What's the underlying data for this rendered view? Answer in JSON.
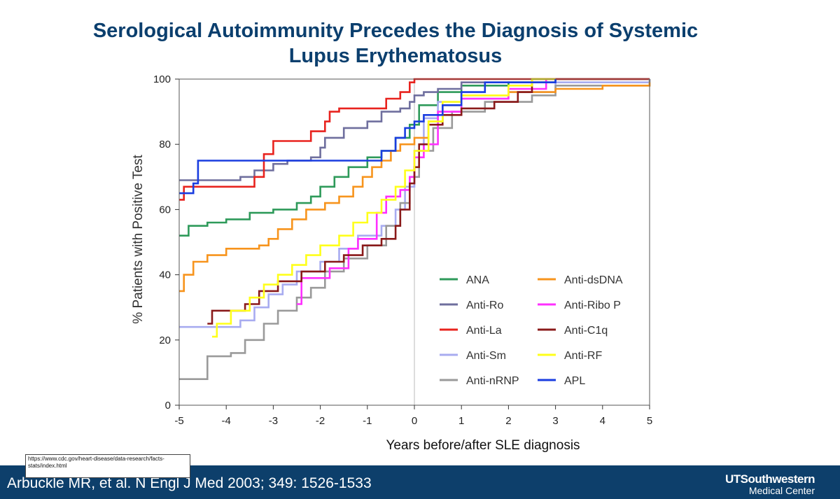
{
  "slide": {
    "title_line1": "Serological Autoimmunity Precedes the Diagnosis of Systemic",
    "title_line2": "Lupus Erythematosus",
    "source_url": "https://www.cdc.gov/heart-disease/data-research/facts-stats/index.html",
    "citation": "Arbuckle MR, et al. N Engl J Med 2003; 349: 1526-1533",
    "logo_main": "UTSouthwestern",
    "logo_sub": "Medical Center"
  },
  "chart_data": {
    "type": "line",
    "step": true,
    "title": "",
    "xlabel": "Years before/after SLE diagnosis",
    "ylabel": "% Patients with Positive Test",
    "xlim": [
      -5,
      5
    ],
    "ylim": [
      0,
      100
    ],
    "xticks": [
      -5,
      -4,
      -3,
      -2,
      -1,
      0,
      1,
      2,
      3,
      4,
      5
    ],
    "xtick_labels": [
      "-5",
      "-4",
      "-3",
      "-2",
      "-1",
      "0",
      "1",
      "2",
      "3",
      "4",
      "5"
    ],
    "yticks": [
      0,
      20,
      40,
      60,
      80,
      100
    ],
    "ytick_labels": [
      "0",
      "20",
      "40",
      "60",
      "80",
      "100"
    ],
    "reference_line_x": 0,
    "legend": {
      "position": "lower-right",
      "columns": 2
    },
    "series": [
      {
        "name": "ANA",
        "color": "#2e9a5a",
        "points": [
          [
            -5,
            52
          ],
          [
            -4.8,
            55
          ],
          [
            -4.4,
            56
          ],
          [
            -4,
            57
          ],
          [
            -3.5,
            59
          ],
          [
            -3,
            60
          ],
          [
            -2.5,
            62
          ],
          [
            -2.2,
            64
          ],
          [
            -2,
            67
          ],
          [
            -1.7,
            70
          ],
          [
            -1.4,
            73
          ],
          [
            -1,
            76
          ],
          [
            -0.7,
            78
          ],
          [
            -0.4,
            82
          ],
          [
            -0.1,
            86
          ],
          [
            0.1,
            92
          ],
          [
            0.5,
            96
          ],
          [
            1,
            98
          ],
          [
            2,
            99
          ],
          [
            3,
            100
          ],
          [
            5,
            100
          ]
        ]
      },
      {
        "name": "Anti-Ro",
        "color": "#6f6f9e",
        "points": [
          [
            -5,
            69
          ],
          [
            -4.3,
            69
          ],
          [
            -3.7,
            70
          ],
          [
            -3.4,
            72
          ],
          [
            -3,
            74
          ],
          [
            -2.7,
            75
          ],
          [
            -2.2,
            76
          ],
          [
            -2,
            79
          ],
          [
            -1.9,
            82
          ],
          [
            -1.5,
            85
          ],
          [
            -1,
            87
          ],
          [
            -0.7,
            90
          ],
          [
            -0.3,
            91
          ],
          [
            -0.1,
            93
          ],
          [
            0,
            95
          ],
          [
            0.2,
            96
          ],
          [
            0.5,
            97
          ],
          [
            1,
            99
          ],
          [
            3,
            100
          ],
          [
            5,
            100
          ]
        ]
      },
      {
        "name": "Anti-La",
        "color": "#e8231e",
        "points": [
          [
            -5,
            63
          ],
          [
            -4.9,
            67
          ],
          [
            -3.4,
            70
          ],
          [
            -3.2,
            77
          ],
          [
            -3,
            81
          ],
          [
            -2.2,
            84
          ],
          [
            -1.9,
            87
          ],
          [
            -1.8,
            90
          ],
          [
            -1.6,
            91
          ],
          [
            -0.9,
            91
          ],
          [
            -0.6,
            94
          ],
          [
            -0.3,
            96
          ],
          [
            -0.1,
            99
          ],
          [
            0,
            100
          ],
          [
            5,
            100
          ]
        ]
      },
      {
        "name": "Anti-Sm",
        "color": "#a8acf0",
        "points": [
          [
            -5,
            24
          ],
          [
            -4.1,
            24
          ],
          [
            -3.7,
            26
          ],
          [
            -3.4,
            30
          ],
          [
            -3.1,
            34
          ],
          [
            -2.8,
            37
          ],
          [
            -2.5,
            41
          ],
          [
            -2,
            44
          ],
          [
            -1.6,
            48
          ],
          [
            -1.2,
            52
          ],
          [
            -0.7,
            55
          ],
          [
            -0.4,
            60
          ],
          [
            -0.2,
            67
          ],
          [
            0,
            78
          ],
          [
            0.2,
            88
          ],
          [
            0.5,
            93
          ],
          [
            1,
            94
          ],
          [
            2,
            96
          ],
          [
            3,
            99
          ],
          [
            5,
            100
          ]
        ]
      },
      {
        "name": "Anti-nRNP",
        "color": "#9a9a9a",
        "points": [
          [
            -5,
            8
          ],
          [
            -4.4,
            15
          ],
          [
            -3.9,
            16
          ],
          [
            -3.6,
            20
          ],
          [
            -3.2,
            25
          ],
          [
            -2.9,
            29
          ],
          [
            -2.5,
            33
          ],
          [
            -2.2,
            36
          ],
          [
            -1.9,
            41
          ],
          [
            -1.5,
            45
          ],
          [
            -1,
            49
          ],
          [
            -0.6,
            55
          ],
          [
            -0.3,
            62
          ],
          [
            -0.1,
            70
          ],
          [
            0.1,
            78
          ],
          [
            0.4,
            85
          ],
          [
            0.8,
            90
          ],
          [
            1.5,
            93
          ],
          [
            2.5,
            95
          ],
          [
            3,
            98
          ],
          [
            5,
            100
          ]
        ]
      },
      {
        "name": "Anti-dsDNA",
        "color": "#f7941d",
        "points": [
          [
            -5,
            35
          ],
          [
            -4.9,
            40
          ],
          [
            -4.7,
            44
          ],
          [
            -4.4,
            46
          ],
          [
            -4,
            48
          ],
          [
            -3.3,
            49
          ],
          [
            -3.1,
            51
          ],
          [
            -2.9,
            54
          ],
          [
            -2.6,
            57
          ],
          [
            -2.3,
            60
          ],
          [
            -1.9,
            62
          ],
          [
            -1.6,
            64
          ],
          [
            -1.3,
            67
          ],
          [
            -1.1,
            70
          ],
          [
            -0.9,
            73
          ],
          [
            -0.7,
            75
          ],
          [
            -0.5,
            78
          ],
          [
            -0.3,
            80
          ],
          [
            0,
            82
          ],
          [
            0.3,
            87
          ],
          [
            0.6,
            92
          ],
          [
            1,
            95
          ],
          [
            2,
            96
          ],
          [
            3,
            97
          ],
          [
            4,
            98
          ],
          [
            5,
            99
          ]
        ]
      },
      {
        "name": "Anti-Ribo P",
        "color": "#ff30ff",
        "points": [
          [
            -2.5,
            31
          ],
          [
            -2.4,
            39
          ],
          [
            -1.8,
            42
          ],
          [
            -1.4,
            48
          ],
          [
            -1.2,
            51
          ],
          [
            -0.8,
            59
          ],
          [
            -0.6,
            64
          ],
          [
            -0.3,
            66
          ],
          [
            -0.1,
            70
          ],
          [
            0,
            76
          ],
          [
            0.2,
            80
          ],
          [
            0.5,
            90
          ],
          [
            1,
            94
          ],
          [
            2,
            97
          ],
          [
            2.8,
            100
          ],
          [
            3,
            100
          ]
        ]
      },
      {
        "name": "Anti-C1q",
        "color": "#8a1a1a",
        "points": [
          [
            -4.4,
            25
          ],
          [
            -4.3,
            29
          ],
          [
            -3.6,
            31
          ],
          [
            -3.3,
            35
          ],
          [
            -2.9,
            38
          ],
          [
            -2.4,
            41
          ],
          [
            -1.9,
            44
          ],
          [
            -1.5,
            46
          ],
          [
            -1.1,
            49
          ],
          [
            -0.7,
            51
          ],
          [
            -0.4,
            55
          ],
          [
            -0.3,
            60
          ],
          [
            -0.1,
            68
          ],
          [
            0,
            73
          ],
          [
            0.1,
            80
          ],
          [
            0.3,
            86
          ],
          [
            0.6,
            89
          ],
          [
            1,
            91
          ],
          [
            1.7,
            93
          ],
          [
            2.2,
            96
          ],
          [
            2.5,
            100
          ],
          [
            3,
            100
          ]
        ]
      },
      {
        "name": "Anti-RF",
        "color": "#ffff1a",
        "points": [
          [
            -4.3,
            21
          ],
          [
            -4.2,
            25
          ],
          [
            -3.9,
            29
          ],
          [
            -3.5,
            33
          ],
          [
            -3.2,
            37
          ],
          [
            -2.9,
            40
          ],
          [
            -2.6,
            43
          ],
          [
            -2.3,
            46
          ],
          [
            -2,
            49
          ],
          [
            -1.6,
            52
          ],
          [
            -1.3,
            56
          ],
          [
            -1,
            59
          ],
          [
            -0.7,
            63
          ],
          [
            -0.4,
            67
          ],
          [
            -0.2,
            72
          ],
          [
            0,
            78
          ],
          [
            0.3,
            87
          ],
          [
            0.6,
            93
          ],
          [
            1,
            95
          ],
          [
            2,
            98
          ],
          [
            2.5,
            100
          ],
          [
            3,
            100
          ]
        ]
      },
      {
        "name": "APL",
        "color": "#1a3de0",
        "points": [
          [
            -5,
            65
          ],
          [
            -4.7,
            68
          ],
          [
            -4.6,
            75
          ],
          [
            -4,
            75
          ],
          [
            -1,
            75
          ],
          [
            -0.7,
            78
          ],
          [
            -0.4,
            82
          ],
          [
            -0.2,
            85
          ],
          [
            0,
            87
          ],
          [
            0.2,
            89
          ],
          [
            0.4,
            89
          ],
          [
            0.6,
            92
          ],
          [
            1,
            96
          ],
          [
            1.5,
            99
          ],
          [
            2,
            99
          ],
          [
            3,
            100
          ]
        ]
      }
    ]
  }
}
